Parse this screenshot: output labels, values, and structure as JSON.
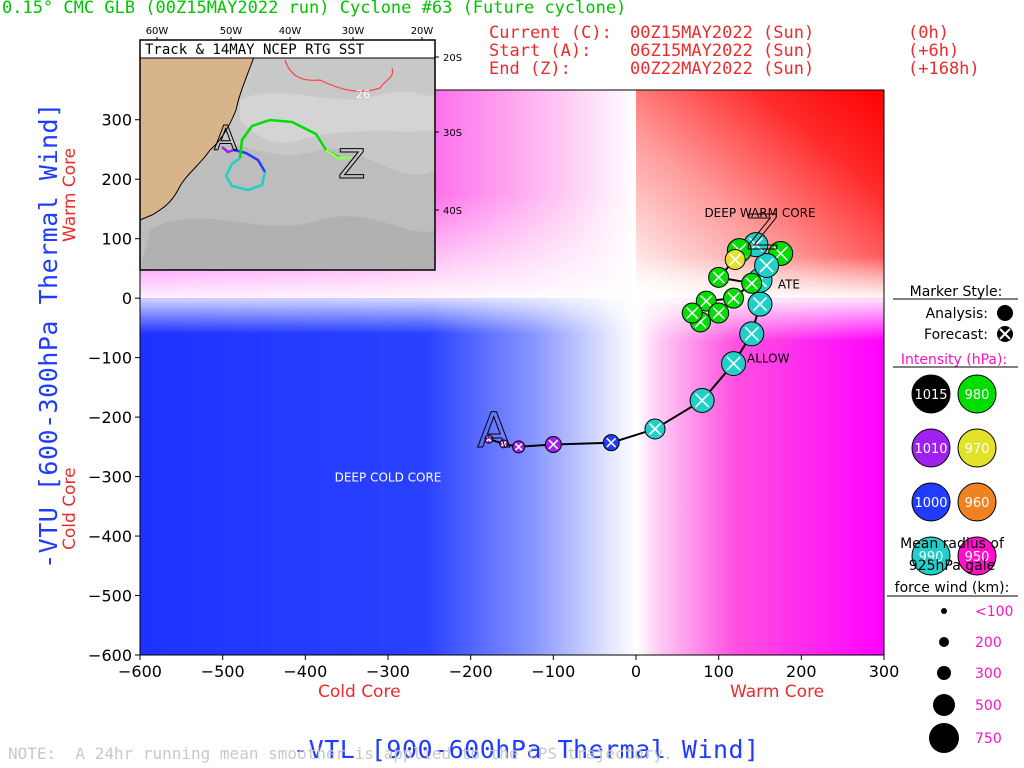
{
  "header": {
    "title": "0.15° CMC GLB (00Z15MAY2022 run) Cyclone #63 (Future cyclone)",
    "current_label": "Current (C):",
    "current_time": "00Z15MAY2022 (Sun)",
    "current_offset": "(0h)",
    "start_label": "Start (A):",
    "start_time": "06Z15MAY2022 (Sun)",
    "start_offset": "(+6h)",
    "end_label": "End (Z):",
    "end_time": "00Z22MAY2022 (Sun)",
    "end_offset": "(+168h)"
  },
  "inset": {
    "title": "Track & 14MAY NCEP RTG SST",
    "lon_labels": [
      "60W",
      "50W",
      "40W",
      "30W",
      "20W"
    ],
    "lat_labels": [
      "20S",
      "30S",
      "40S"
    ],
    "sst_contour_label": "26",
    "start_marker": "A",
    "end_marker": "Z"
  },
  "chart_data": {
    "type": "scatter",
    "title": "0.15° CMC GLB (00Z15MAY2022 run) Cyclone #63 (Future cyclone)",
    "xlabel": "-VTL [900-600hPa Thermal Wind]",
    "ylabel": "-VTU [600-300hPa Thermal Wind]",
    "xlim": [
      -600,
      300
    ],
    "ylim": [
      -600,
      350
    ],
    "x_ticks": [
      -600,
      -500,
      -400,
      -300,
      -200,
      -100,
      0,
      100,
      200,
      300
    ],
    "y_ticks": [
      300,
      200,
      100,
      0,
      -100,
      -200,
      -300,
      -400,
      -500,
      -600
    ],
    "x_side_labels": {
      "left": "Cold Core",
      "right": "Warm Core"
    },
    "y_side_labels": {
      "top": "Warm Core",
      "bottom": "Cold Core"
    },
    "quadrant_labels": [
      {
        "text": "DEEP WARM CORE",
        "x": 150,
        "y": 145
      },
      {
        "text": "DEEP COLD CORE",
        "x": -300,
        "y": -300
      },
      {
        "text": "ALLOW",
        "x": 160,
        "y": -100
      },
      {
        "text": "ATE",
        "x": 185,
        "y": 25
      }
    ],
    "start_marker": {
      "label": "A",
      "x": -175,
      "y": -237
    },
    "end_marker": {
      "label": "Z",
      "x": 150,
      "y": 120
    },
    "track": [
      {
        "x": -178,
        "y": -237,
        "pressure": 1010,
        "radius_km": 50
      },
      {
        "x": -160,
        "y": -245,
        "pressure": 1010,
        "radius_km": 80
      },
      {
        "x": -142,
        "y": -250,
        "pressure": 1010,
        "radius_km": 120
      },
      {
        "x": -100,
        "y": -246,
        "pressure": 1010,
        "radius_km": 200
      },
      {
        "x": -30,
        "y": -243,
        "pressure": 1000,
        "radius_km": 250
      },
      {
        "x": 23,
        "y": -220,
        "pressure": 990,
        "radius_km": 300
      },
      {
        "x": 80,
        "y": -172,
        "pressure": 990,
        "radius_km": 400
      },
      {
        "x": 118,
        "y": -110,
        "pressure": 990,
        "radius_km": 450
      },
      {
        "x": 140,
        "y": -60,
        "pressure": 990,
        "radius_km": 450
      },
      {
        "x": 150,
        "y": -10,
        "pressure": 990,
        "radius_km": 450
      },
      {
        "x": 150,
        "y": 30,
        "pressure": 990,
        "radius_km": 450
      },
      {
        "x": 175,
        "y": 75,
        "pressure": 980,
        "radius_km": 400
      },
      {
        "x": 158,
        "y": 55,
        "pressure": 990,
        "radius_km": 450
      },
      {
        "x": 145,
        "y": 90,
        "pressure": 990,
        "radius_km": 450
      },
      {
        "x": 125,
        "y": 80,
        "pressure": 980,
        "radius_km": 400
      },
      {
        "x": 120,
        "y": 65,
        "pressure": 970,
        "radius_km": 350
      },
      {
        "x": 100,
        "y": 35,
        "pressure": 980,
        "radius_km": 350
      },
      {
        "x": 140,
        "y": 25,
        "pressure": 980,
        "radius_km": 350
      },
      {
        "x": 118,
        "y": 0,
        "pressure": 980,
        "radius_km": 350
      },
      {
        "x": 85,
        "y": -5,
        "pressure": 980,
        "radius_km": 350
      },
      {
        "x": 100,
        "y": -25,
        "pressure": 980,
        "radius_km": 350
      },
      {
        "x": 78,
        "y": -40,
        "pressure": 980,
        "radius_km": 350
      },
      {
        "x": 68,
        "y": -25,
        "pressure": 980,
        "radius_km": 350
      }
    ]
  },
  "legend": {
    "marker_style_title": "Marker Style:",
    "analysis_label": "Analysis:",
    "forecast_label": "Forecast:",
    "intensity_title": "Intensity (hPa):",
    "intensity": [
      {
        "value": "1015",
        "color": "#000000"
      },
      {
        "value": "980",
        "color": "#00dd00"
      },
      {
        "value": "1010",
        "color": "#a020f0"
      },
      {
        "value": "970",
        "color": "#e2e22a"
      },
      {
        "value": "1000",
        "color": "#1f3cff"
      },
      {
        "value": "960",
        "color": "#f08222"
      },
      {
        "value": "990",
        "color": "#20d0c8"
      },
      {
        "value": "950",
        "color": "#ff10c8"
      }
    ],
    "radius_title_1": "Mean radius of",
    "radius_title_2": "925hPa gale",
    "radius_title_3": "force wind (km):",
    "radius_sizes": [
      "<100",
      "200",
      "300",
      "500",
      "750"
    ]
  },
  "footer": {
    "note": "NOTE:  A 24hr running mean smoother is applied to the CPS trajectory."
  },
  "colors": {
    "cold_core": "#1f3cff",
    "warm_core": "#ff0000",
    "shallow_warm": "#ff00ff",
    "axis_labels": "#1f3cff",
    "side_labels": "#ee2a2a",
    "title": "#00c400"
  }
}
